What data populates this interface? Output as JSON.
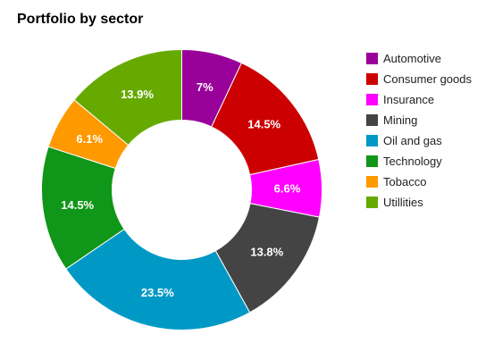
{
  "chart_data": {
    "type": "pie",
    "donut": true,
    "title": "Portfolio by sector",
    "legend_position": "right",
    "slices": [
      {
        "label": "Automotive",
        "value": 7,
        "display": "7%",
        "color": "#990099"
      },
      {
        "label": "Consumer goods",
        "value": 14.5,
        "display": "14.5%",
        "color": "#cc0000"
      },
      {
        "label": "Insurance",
        "value": 6.6,
        "display": "6.6%",
        "color": "#ff00ff"
      },
      {
        "label": "Mining",
        "value": 13.8,
        "display": "13.8%",
        "color": "#444444"
      },
      {
        "label": "Oil and gas",
        "value": 23.5,
        "display": "23.5%",
        "color": "#0099c6"
      },
      {
        "label": "Technology",
        "value": 14.5,
        "display": "14.5%",
        "color": "#109618"
      },
      {
        "label": "Tobacco",
        "value": 6.1,
        "display": "6.1%",
        "color": "#ff9900"
      },
      {
        "label": "Utillities",
        "value": 13.9,
        "display": "13.9%",
        "color": "#66aa00"
      }
    ]
  }
}
